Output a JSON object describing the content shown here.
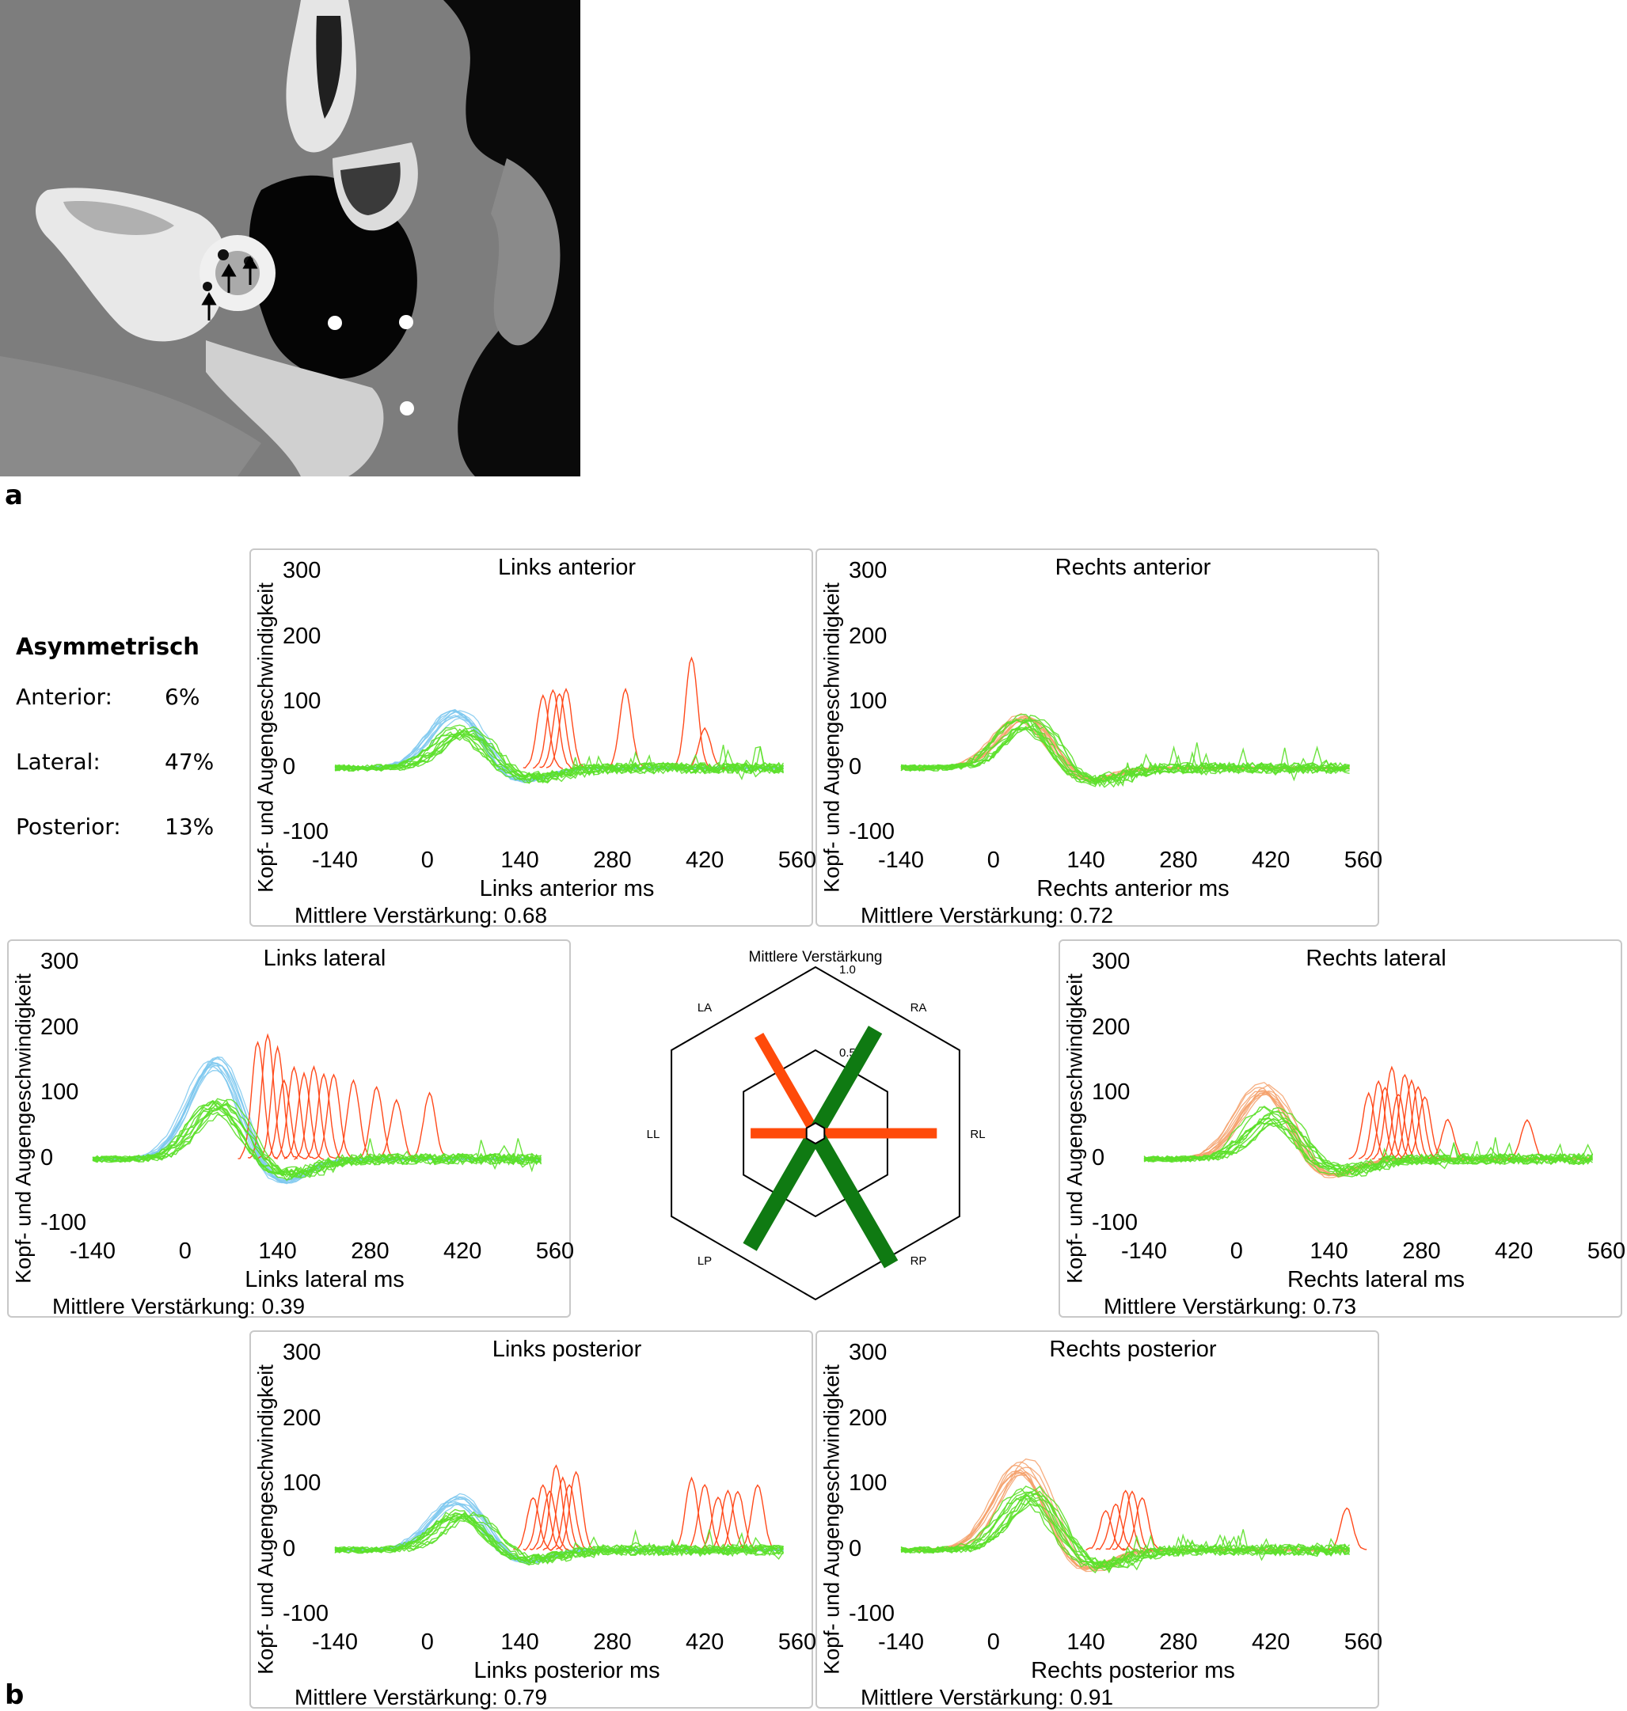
{
  "figure_labels": {
    "a": "a",
    "b": "b"
  },
  "asymmetry": {
    "title": "Asymmetrisch",
    "rows": [
      {
        "label": "Anterior:",
        "value": "6%"
      },
      {
        "label": "Lateral:",
        "value": "47%"
      },
      {
        "label": "Posterior:",
        "value": "13%"
      }
    ]
  },
  "colors": {
    "head": "#7ec8ee",
    "eye": "#5ce02a",
    "saccade": "#ff4a1c",
    "head_right": "#f5a06a",
    "green_dark": "#0f7a12",
    "orange_bar": "#ff4a0a"
  },
  "chart_data": [
    {
      "type": "line",
      "title": "Links anterior",
      "xlabel": "Links anterior ms",
      "ylabel": "Kopf- und Augengeschwindigkeit",
      "footer": "Mittlere Verstärkung: 0.68",
      "x_ticks": [
        "-140",
        "0",
        "140",
        "280",
        "420",
        "560"
      ],
      "y_ticks": [
        "300",
        "200",
        "100",
        "0",
        "-100"
      ],
      "xlim": [
        -140,
        560
      ],
      "ylim": [
        -100,
        300
      ],
      "head_peak": 85,
      "eye_peak": 60,
      "head_side": "left",
      "saccades": [
        [
          175,
          110
        ],
        [
          190,
          120
        ],
        [
          200,
          115
        ],
        [
          210,
          120
        ],
        [
          300,
          120
        ],
        [
          400,
          170
        ],
        [
          420,
          60
        ]
      ]
    },
    {
      "type": "line",
      "title": "Rechts anterior",
      "xlabel": "Rechts anterior ms",
      "ylabel": "Kopf- und Augengeschwindigkeit",
      "footer": "Mittlere Verstärkung: 0.72",
      "x_ticks": [
        "-140",
        "0",
        "140",
        "280",
        "420",
        "560"
      ],
      "y_ticks": [
        "300",
        "200",
        "100",
        "0",
        "-100"
      ],
      "xlim": [
        -140,
        560
      ],
      "ylim": [
        -100,
        300
      ],
      "head_peak": 80,
      "eye_peak": 72,
      "head_side": "right",
      "saccades": []
    },
    {
      "type": "line",
      "title": "Links lateral",
      "xlabel": "Links lateral ms",
      "ylabel": "Kopf- und Augengeschwindigkeit",
      "footer": "Mittlere Verstärkung: 0.39",
      "x_ticks": [
        "-140",
        "0",
        "140",
        "280",
        "420",
        "560"
      ],
      "y_ticks": [
        "300",
        "200",
        "100",
        "0",
        "-100"
      ],
      "xlim": [
        -140,
        560
      ],
      "ylim": [
        -100,
        300
      ],
      "head_peak": 150,
      "eye_peak": 85,
      "head_side": "left",
      "saccades": [
        [
          110,
          180
        ],
        [
          125,
          190
        ],
        [
          140,
          170
        ],
        [
          150,
          120
        ],
        [
          165,
          140
        ],
        [
          180,
          130
        ],
        [
          195,
          140
        ],
        [
          210,
          130
        ],
        [
          225,
          130
        ],
        [
          255,
          120
        ],
        [
          290,
          110
        ],
        [
          320,
          90
        ],
        [
          370,
          100
        ]
      ]
    },
    {
      "type": "line",
      "title": "Rechts lateral",
      "xlabel": "Rechts lateral ms",
      "ylabel": "Kopf- und Augengeschwindigkeit",
      "footer": "Mittlere Verstärkung: 0.73",
      "x_ticks": [
        "-140",
        "0",
        "140",
        "280",
        "420",
        "560"
      ],
      "y_ticks": [
        "300",
        "200",
        "100",
        "0",
        "-100"
      ],
      "xlim": [
        -140,
        560
      ],
      "ylim": [
        -100,
        300
      ],
      "head_peak": 110,
      "eye_peak": 70,
      "head_side": "right",
      "saccades": [
        [
          200,
          100
        ],
        [
          215,
          120
        ],
        [
          225,
          110
        ],
        [
          235,
          140
        ],
        [
          245,
          100
        ],
        [
          255,
          130
        ],
        [
          265,
          120
        ],
        [
          275,
          110
        ],
        [
          285,
          95
        ],
        [
          320,
          60
        ],
        [
          440,
          60
        ]
      ]
    },
    {
      "type": "line",
      "title": "Links posterior",
      "xlabel": "Links posterior ms",
      "ylabel": "Kopf- und Augengeschwindigkeit",
      "footer": "Mittlere Verstärkung: 0.79",
      "x_ticks": [
        "-140",
        "0",
        "140",
        "280",
        "420",
        "560"
      ],
      "y_ticks": [
        "300",
        "200",
        "100",
        "0",
        "-100"
      ],
      "xlim": [
        -140,
        560
      ],
      "ylim": [
        -100,
        300
      ],
      "head_peak": 80,
      "eye_peak": 60,
      "head_side": "left",
      "saccades": [
        [
          160,
          80
        ],
        [
          175,
          100
        ],
        [
          185,
          90
        ],
        [
          195,
          130
        ],
        [
          205,
          110
        ],
        [
          215,
          100
        ],
        [
          225,
          120
        ],
        [
          400,
          110
        ],
        [
          420,
          100
        ],
        [
          440,
          80
        ],
        [
          455,
          90
        ],
        [
          470,
          90
        ],
        [
          500,
          100
        ]
      ]
    },
    {
      "type": "line",
      "title": "Rechts posterior",
      "xlabel": "Rechts posterior ms",
      "ylabel": "Kopf- und Augengeschwindigkeit",
      "footer": "Mittlere Verstärkung: 0.91",
      "x_ticks": [
        "-140",
        "0",
        "140",
        "280",
        "420",
        "560"
      ],
      "y_ticks": [
        "300",
        "200",
        "100",
        "0",
        "-100"
      ],
      "xlim": [
        -140,
        560
      ],
      "ylim": [
        -100,
        300
      ],
      "head_peak": 130,
      "eye_peak": 90,
      "head_side": "right",
      "saccades": [
        [
          170,
          60
        ],
        [
          185,
          70
        ],
        [
          200,
          90
        ],
        [
          210,
          90
        ],
        [
          225,
          80
        ],
        [
          535,
          65
        ]
      ]
    },
    {
      "type": "radar",
      "title": "Mittlere Verstärkung",
      "axes": [
        "LA",
        "RA",
        "RL",
        "RP",
        "LP",
        "LL"
      ],
      "rings": [
        "1.0",
        "0.5"
      ],
      "values": {
        "LA": 0.68,
        "RA": 0.72,
        "RL": 0.73,
        "RP": 0.91,
        "LP": 0.79,
        "LL": 0.39
      },
      "bar_colors": {
        "LA": "orange",
        "RA": "green",
        "RL": "orange",
        "RP": "green",
        "LP": "green",
        "LL": "orange"
      }
    }
  ]
}
